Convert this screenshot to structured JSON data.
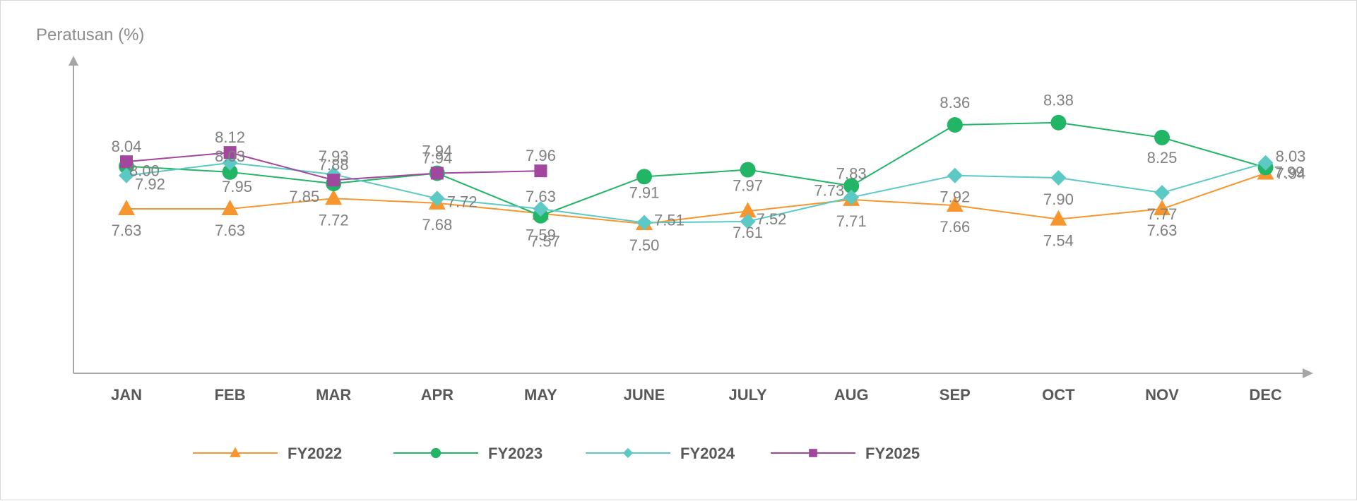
{
  "chart_data": {
    "type": "line",
    "ylabel": "Peratusan (%)",
    "categories": [
      "JAN",
      "FEB",
      "MAR",
      "APR",
      "MAY",
      "JUNE",
      "JULY",
      "AUG",
      "SEP",
      "OCT",
      "NOV",
      "DEC"
    ],
    "ylim": [
      6.2,
      8.9
    ],
    "grid": false,
    "legend": "bottom",
    "series": [
      {
        "name": "FY2022",
        "color": "#f7962f",
        "marker": "triangle",
        "values": [
          7.63,
          7.63,
          7.72,
          7.68,
          7.59,
          7.5,
          7.61,
          7.71,
          7.66,
          7.54,
          7.63,
          7.94
        ],
        "labels": [
          "7.63",
          "7.63",
          "7.72",
          "7.68",
          "7.59",
          "7.50",
          "7.61",
          "7.71",
          "7.66",
          "7.54",
          "7.63",
          "7.94"
        ]
      },
      {
        "name": "FY2023",
        "color": "#21b565",
        "marker": "circle",
        "values": [
          8.0,
          7.95,
          7.85,
          7.94,
          7.57,
          7.91,
          7.97,
          7.83,
          8.36,
          8.38,
          8.25,
          7.99
        ],
        "labels": [
          "8.00",
          "7.95",
          "7.85",
          "7.94",
          "7.57",
          "7.91",
          "7.97",
          "7.83",
          "8.36",
          "8.38",
          "8.25",
          "7.99"
        ]
      },
      {
        "name": "FY2024",
        "color": "#5cc9c4",
        "marker": "diamond",
        "values": [
          7.92,
          8.03,
          7.93,
          7.72,
          7.63,
          7.51,
          7.52,
          7.73,
          7.92,
          7.9,
          7.77,
          8.03
        ],
        "labels": [
          "7.92",
          "8.03",
          "7.93",
          "7.72",
          "7.63",
          "7.51",
          "7.52",
          "7.73",
          "7.92",
          "7.90",
          "7.77",
          "8.03"
        ]
      },
      {
        "name": "FY2025",
        "color": "#a1479d",
        "marker": "square",
        "values": [
          8.04,
          8.12,
          7.88,
          7.94,
          7.96,
          null,
          null,
          null,
          null,
          null,
          null,
          null
        ],
        "labels": [
          "8.04",
          "8.12",
          "7.88",
          "7.94",
          "7.96",
          null,
          null,
          null,
          null,
          null,
          null,
          null
        ]
      }
    ]
  }
}
